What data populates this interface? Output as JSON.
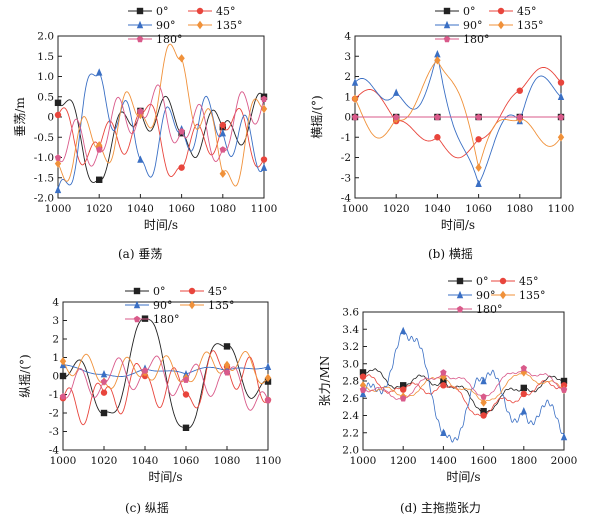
{
  "legend_labels": [
    "0°",
    "45°",
    "90°",
    "135°",
    "180°"
  ],
  "series_colors": {
    "0°": "#222222",
    "45°": "#e8453c",
    "90°": "#3a6fc4",
    "135°": "#f0913a",
    "180°": "#d95a8a"
  },
  "chart_data": [
    {
      "type": "line",
      "caption": "(a) 垂荡",
      "xlabel": "时间/s",
      "ylabel": "垂荡/m",
      "xlim": [
        1000,
        1100
      ],
      "ylim": [
        -2.0,
        2.0
      ],
      "xticks": [
        1000,
        1020,
        1040,
        1060,
        1080,
        1100
      ],
      "yticks": [
        -2.0,
        -1.5,
        -1.0,
        -0.5,
        0,
        0.5,
        1.0,
        1.5,
        2.0
      ],
      "legend": "top",
      "series": [
        {
          "name": "0°",
          "marker": "square",
          "x": [
            1000,
            1020,
            1040,
            1060,
            1080,
            1100
          ],
          "y": [
            0.35,
            -1.55,
            0.15,
            -0.4,
            -0.25,
            0.5
          ]
        },
        {
          "name": "45°",
          "marker": "circle",
          "x": [
            1000,
            1020,
            1040,
            1060,
            1080,
            1100
          ],
          "y": [
            0.05,
            -0.75,
            0.1,
            -1.25,
            -0.2,
            -1.05
          ]
        },
        {
          "name": "90°",
          "marker": "triangle",
          "x": [
            1000,
            1020,
            1040,
            1060,
            1080,
            1100
          ],
          "y": [
            -1.8,
            1.1,
            -1.05,
            -0.3,
            -0.4,
            -1.25
          ]
        },
        {
          "name": "135°",
          "marker": "diamond",
          "x": [
            1000,
            1020,
            1040,
            1060,
            1080,
            1100
          ],
          "y": [
            -1.15,
            -0.7,
            0.05,
            1.45,
            -1.4,
            0.2
          ]
        },
        {
          "name": "180°",
          "marker": "pentagon",
          "x": [
            1000,
            1020,
            1040,
            1060,
            1080,
            1100
          ],
          "y": [
            -1.0,
            -0.8,
            0.15,
            -0.35,
            -0.8,
            0.45
          ]
        }
      ]
    },
    {
      "type": "line",
      "caption": "(b) 横摇",
      "xlabel": "时间/s",
      "ylabel": "横摇/(°)",
      "xlim": [
        1000,
        1100
      ],
      "ylim": [
        -4,
        4
      ],
      "xticks": [
        1000,
        1020,
        1040,
        1060,
        1080,
        1100
      ],
      "yticks": [
        -4,
        -3,
        -2,
        -1,
        0,
        1,
        2,
        3,
        4
      ],
      "legend": "top",
      "series": [
        {
          "name": "0°",
          "marker": "square",
          "x": [
            1000,
            1020,
            1040,
            1060,
            1080,
            1100
          ],
          "y": [
            0.0,
            0.0,
            0.0,
            0.0,
            0.0,
            0.0
          ]
        },
        {
          "name": "45°",
          "marker": "circle",
          "x": [
            1000,
            1020,
            1040,
            1060,
            1080,
            1100
          ],
          "y": [
            0.9,
            -0.2,
            -1.0,
            -1.1,
            1.3,
            1.7
          ]
        },
        {
          "name": "90°",
          "marker": "triangle",
          "x": [
            1000,
            1020,
            1040,
            1060,
            1080,
            1100
          ],
          "y": [
            1.7,
            1.2,
            3.1,
            -3.3,
            -0.2,
            1.0
          ]
        },
        {
          "name": "135°",
          "marker": "diamond",
          "x": [
            1000,
            1020,
            1040,
            1060,
            1080,
            1100
          ],
          "y": [
            0.9,
            -0.1,
            2.8,
            -2.5,
            -0.1,
            -1.0
          ]
        },
        {
          "name": "180°",
          "marker": "pentagon",
          "x": [
            1000,
            1020,
            1040,
            1060,
            1080,
            1100
          ],
          "y": [
            0.0,
            0.0,
            0.0,
            0.0,
            0.0,
            0.0
          ]
        }
      ]
    },
    {
      "type": "line",
      "caption": "(c) 纵摇",
      "xlabel": "时间/s",
      "ylabel": "纵摇/(°)",
      "xlim": [
        1000,
        1100
      ],
      "ylim": [
        -4,
        4
      ],
      "xticks": [
        1000,
        1020,
        1040,
        1060,
        1080,
        1100
      ],
      "yticks": [
        -4,
        -3,
        -2,
        -1,
        0,
        1,
        2,
        3,
        4
      ],
      "legend": "top",
      "series": [
        {
          "name": "0°",
          "marker": "square",
          "x": [
            1000,
            1020,
            1040,
            1060,
            1080,
            1100
          ],
          "y": [
            0.0,
            -2.0,
            3.1,
            -2.8,
            1.6,
            -0.3
          ]
        },
        {
          "name": "45°",
          "marker": "circle",
          "x": [
            1000,
            1020,
            1040,
            1060,
            1080,
            1100
          ],
          "y": [
            -1.2,
            -0.9,
            0.0,
            -1.0,
            0.5,
            -1.3
          ]
        },
        {
          "name": "90°",
          "marker": "triangle",
          "x": [
            1000,
            1020,
            1040,
            1060,
            1080,
            1100
          ],
          "y": [
            0.6,
            0.1,
            0.4,
            0.1,
            0.3,
            0.5
          ]
        },
        {
          "name": "135°",
          "marker": "diamond",
          "x": [
            1000,
            1020,
            1040,
            1060,
            1080,
            1100
          ],
          "y": [
            0.8,
            -0.3,
            0.2,
            -0.1,
            0.6,
            -0.1
          ]
        },
        {
          "name": "180°",
          "marker": "pentagon",
          "x": [
            1000,
            1020,
            1040,
            1060,
            1080,
            1100
          ],
          "y": [
            -1.1,
            -0.3,
            0.3,
            -0.2,
            0.2,
            -1.3
          ]
        }
      ]
    },
    {
      "type": "line",
      "caption": "(d) 主拖揽张力",
      "xlabel": "时间/s",
      "ylabel": "张力/MN",
      "xlim": [
        1000,
        2000
      ],
      "ylim": [
        2.0,
        3.6
      ],
      "xticks": [
        1000,
        1200,
        1400,
        1600,
        1800,
        2000
      ],
      "yticks": [
        2.0,
        2.2,
        2.4,
        2.6,
        2.8,
        3.0,
        3.2,
        3.4,
        3.6
      ],
      "legend": "top",
      "series": [
        {
          "name": "0°",
          "marker": "square",
          "x": [
            1000,
            1200,
            1400,
            1600,
            1800,
            2000
          ],
          "y": [
            2.9,
            2.75,
            2.8,
            2.45,
            2.72,
            2.8
          ]
        },
        {
          "name": "45°",
          "marker": "circle",
          "x": [
            1000,
            1200,
            1400,
            1600,
            1800,
            2000
          ],
          "y": [
            2.85,
            2.7,
            2.75,
            2.4,
            2.65,
            2.75
          ]
        },
        {
          "name": "90°",
          "marker": "triangle",
          "x": [
            1000,
            1200,
            1400,
            1600,
            1800,
            2000
          ],
          "y": [
            2.65,
            3.38,
            2.2,
            2.8,
            2.45,
            2.15
          ]
        },
        {
          "name": "135°",
          "marker": "diamond",
          "x": [
            1000,
            1200,
            1400,
            1600,
            1800,
            2000
          ],
          "y": [
            2.75,
            2.62,
            2.85,
            2.55,
            2.9,
            2.7
          ]
        },
        {
          "name": "180°",
          "marker": "pentagon",
          "x": [
            1000,
            1200,
            1400,
            1600,
            1800,
            2000
          ],
          "y": [
            2.7,
            2.6,
            2.9,
            2.62,
            2.95,
            2.7
          ]
        }
      ]
    }
  ]
}
